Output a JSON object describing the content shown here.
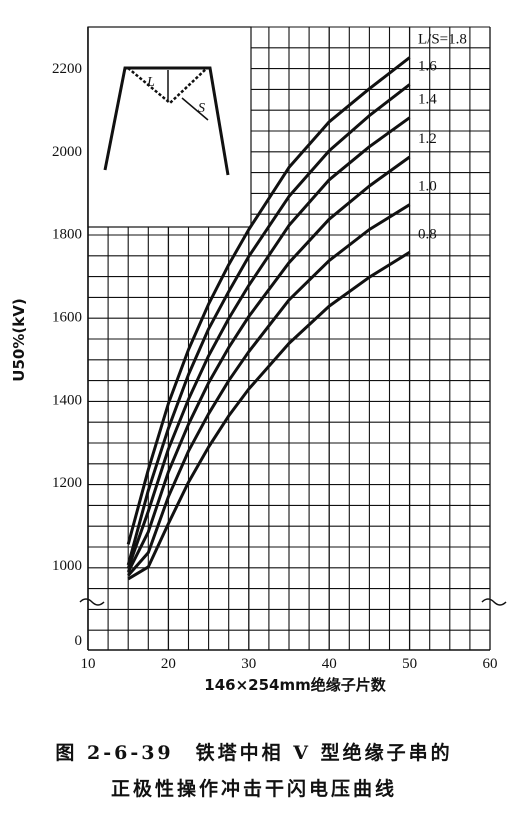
{
  "chart_data": {
    "type": "line",
    "title": "",
    "xlabel": "146×254mm绝缘子片数",
    "ylabel": "U50%(kV)",
    "xlim": [
      10,
      60
    ],
    "y_ticks": [
      0,
      1000,
      1200,
      1400,
      1600,
      1800,
      2000,
      2200
    ],
    "x_ticks": [
      10,
      20,
      30,
      40,
      50,
      60
    ],
    "y_axis_break": "between 0 and 1000",
    "grid": true,
    "legend_title": "L/S=",
    "series": [
      {
        "name": "1.8",
        "x": [
          15,
          17.5,
          20,
          22.5,
          25,
          27.5,
          30,
          35,
          40,
          45,
          50
        ],
        "y": [
          1050,
          1230,
          1390,
          1520,
          1630,
          1725,
          1810,
          1960,
          2070,
          2150,
          2225
        ]
      },
      {
        "name": "1.6",
        "x": [
          15,
          17.5,
          20,
          22.5,
          25,
          27.5,
          30,
          35,
          40,
          45,
          50
        ],
        "y": [
          1000,
          1180,
          1330,
          1460,
          1570,
          1660,
          1745,
          1890,
          2000,
          2085,
          2160
        ]
      },
      {
        "name": "1.4",
        "x": [
          15,
          17.5,
          20,
          22.5,
          25,
          27.5,
          30,
          35,
          40,
          45,
          50
        ],
        "y": [
          955,
          1130,
          1280,
          1400,
          1505,
          1595,
          1675,
          1820,
          1930,
          2010,
          2080
        ]
      },
      {
        "name": "1.2",
        "x": [
          15,
          17.5,
          20,
          22.5,
          25,
          27.5,
          30,
          35,
          40,
          45,
          50
        ],
        "y": [
          905,
          1080,
          1225,
          1340,
          1440,
          1525,
          1600,
          1730,
          1835,
          1915,
          1985
        ]
      },
      {
        "name": "1.0",
        "x": [
          15,
          17.5,
          20,
          22.5,
          25,
          27.5,
          30,
          35,
          40,
          45,
          50
        ],
        "y": [
          860,
          1030,
          1165,
          1275,
          1365,
          1445,
          1515,
          1640,
          1735,
          1810,
          1870
        ]
      },
      {
        "name": "0.8",
        "x": [
          15,
          17.5,
          20,
          22.5,
          25,
          27.5,
          30,
          35,
          40,
          45,
          50
        ],
        "y": [
          815,
          975,
          1100,
          1200,
          1285,
          1360,
          1425,
          1535,
          1625,
          1695,
          1755
        ]
      }
    ],
    "inset_labels": [
      "L",
      "S"
    ],
    "caption": [
      "图 2-6-39　铁塔中相 V 型绝缘子串的",
      "正极性操作冲击干闪电压曲线"
    ]
  }
}
